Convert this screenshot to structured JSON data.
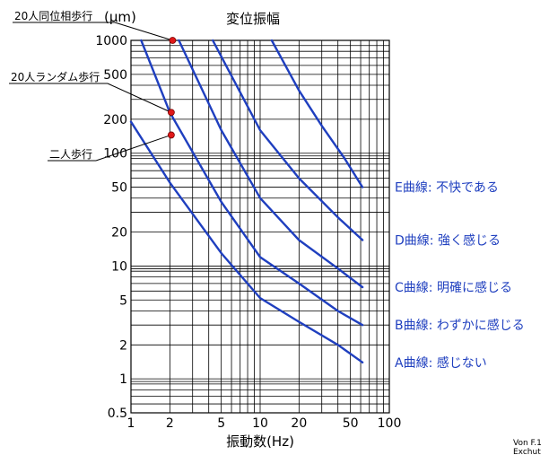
{
  "chart_data": {
    "type": "line",
    "title": "変位振幅",
    "ylabel_unit": "(μm)",
    "xlabel": "振動数(Hz)",
    "x_scale": "log",
    "y_scale": "log",
    "xlim": [
      1,
      100
    ],
    "ylim": [
      0.5,
      1000
    ],
    "x_ticks": [
      {
        "value": 1,
        "label": "1"
      },
      {
        "value": 2,
        "label": "2"
      },
      {
        "value": 5,
        "label": "5"
      },
      {
        "value": 10,
        "label": "10"
      },
      {
        "value": 20,
        "label": "20"
      },
      {
        "value": 50,
        "label": "50"
      },
      {
        "value": 100,
        "label": "100"
      }
    ],
    "y_ticks": [
      {
        "value": 0.5,
        "label": "0.5"
      },
      {
        "value": 1,
        "label": "1"
      },
      {
        "value": 2,
        "label": "2"
      },
      {
        "value": 5,
        "label": "5"
      },
      {
        "value": 10,
        "label": "10"
      },
      {
        "value": 20,
        "label": "20"
      },
      {
        "value": 50,
        "label": "50"
      },
      {
        "value": 100,
        "label": "100"
      },
      {
        "value": 200,
        "label": "200"
      },
      {
        "value": 500,
        "label": "500"
      },
      {
        "value": 1000,
        "label": "1000"
      }
    ],
    "grid": true,
    "series": [
      {
        "name": "E曲線: 不快である",
        "x": [
          12.3,
          20,
          30,
          45,
          62
        ],
        "y": [
          1000,
          360,
          175,
          90,
          50
        ]
      },
      {
        "name": "D曲線: 強く感じる",
        "x": [
          4.3,
          10,
          20,
          40,
          62
        ],
        "y": [
          1000,
          160,
          60,
          27,
          17
        ]
      },
      {
        "name": "C曲線: 明確に感じる",
        "x": [
          2.35,
          5,
          10,
          20,
          40,
          62
        ],
        "y": [
          1000,
          160,
          40,
          17,
          9.5,
          6.5
        ]
      },
      {
        "name": "B曲線: わずかに感じる",
        "x": [
          1.2,
          2,
          5,
          10,
          20,
          40,
          62
        ],
        "y": [
          1000,
          230,
          37,
          12,
          7,
          4,
          3
        ]
      },
      {
        "name": "A曲線: 感じない",
        "x": [
          1,
          2,
          5,
          10,
          20,
          40,
          62
        ],
        "y": [
          190,
          55,
          13,
          5.2,
          3.2,
          2,
          1.4
        ]
      }
    ],
    "annotations": [
      {
        "text": "20人同位相歩行",
        "x": 2.1,
        "y": 1000
      },
      {
        "text": "20人ランダム歩行",
        "x": 2.05,
        "y": 230
      },
      {
        "text": "二人歩行",
        "x": 2.05,
        "y": 145
      }
    ],
    "credit": [
      "Von F.1",
      "Exchut"
    ]
  },
  "colors": {
    "curve": "#1f3fbf",
    "marker": "#e01818",
    "grid": "#000000"
  }
}
